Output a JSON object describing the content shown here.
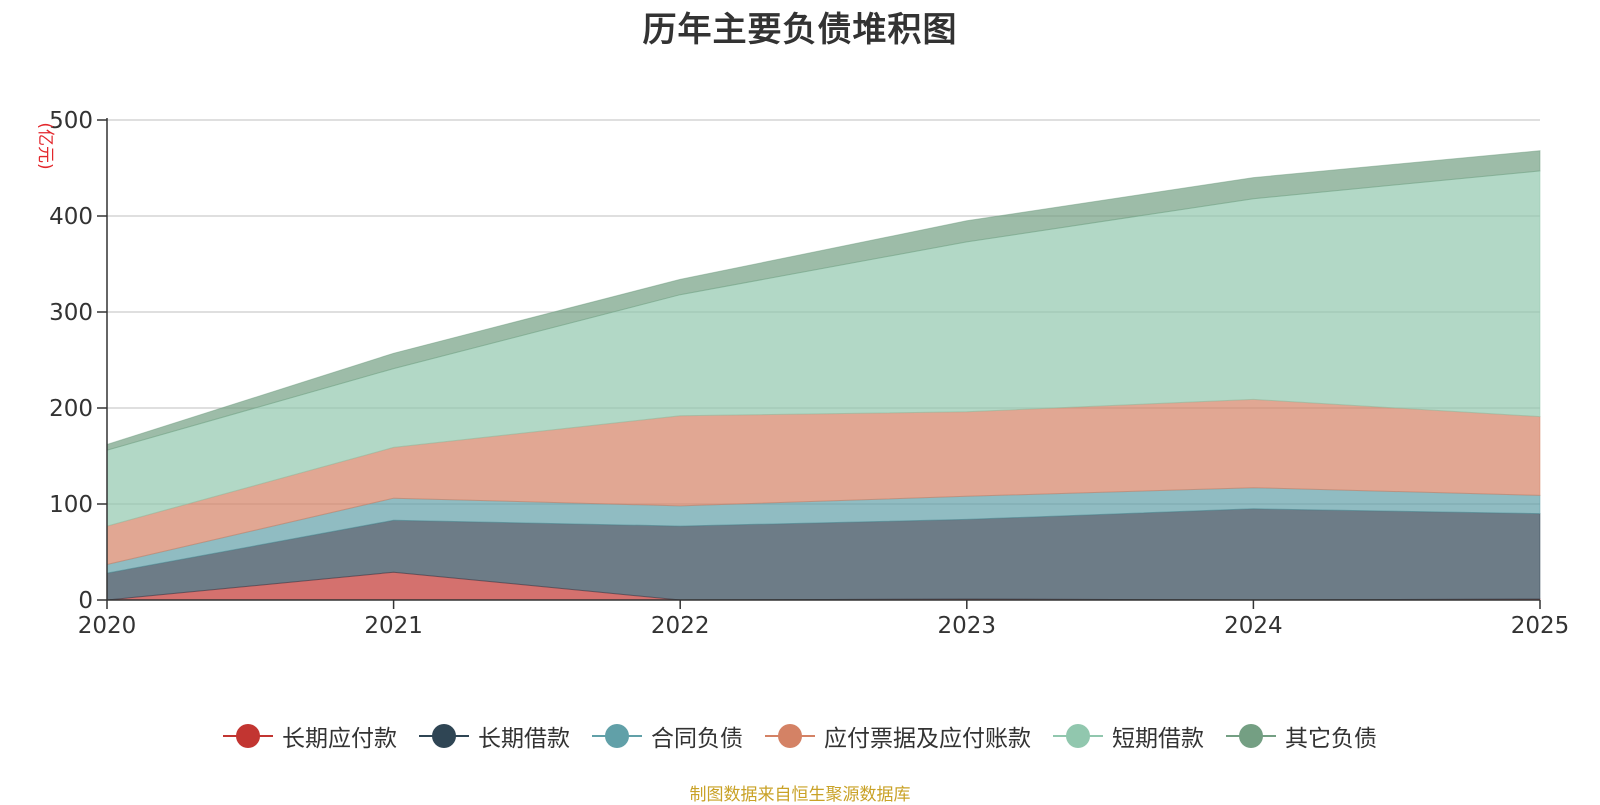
{
  "chart_data": {
    "type": "area",
    "stacked": true,
    "title": "历年主要负债堆积图",
    "ylabel": "(亿元)",
    "xlabel": "",
    "categories": [
      "2020",
      "2021",
      "2022",
      "2023",
      "2024",
      "2025"
    ],
    "ylim": [
      0,
      500
    ],
    "yticks": [
      0,
      100,
      200,
      300,
      400,
      500
    ],
    "grid": true,
    "legend_position": "bottom",
    "series": [
      {
        "name": "长期应付款",
        "color": "#c23531",
        "values": [
          0,
          29,
          0,
          1,
          0,
          1
        ]
      },
      {
        "name": "长期借款",
        "color": "#2f4554",
        "values": [
          28,
          54,
          77,
          83,
          95,
          89
        ]
      },
      {
        "name": "合同负债",
        "color": "#61a0a8",
        "values": [
          9,
          23,
          21,
          24,
          22,
          19
        ]
      },
      {
        "name": "应付票据及应付账款",
        "color": "#d48265",
        "values": [
          40,
          53,
          94,
          88,
          92,
          82
        ]
      },
      {
        "name": "短期借款",
        "color": "#91c7ae",
        "values": [
          79,
          82,
          126,
          177,
          209,
          256
        ]
      },
      {
        "name": "其它负债",
        "color": "#749f83",
        "values": [
          6,
          16,
          16,
          22,
          22,
          21
        ]
      }
    ]
  },
  "footnote": "制图数据来自恒生聚源数据库"
}
